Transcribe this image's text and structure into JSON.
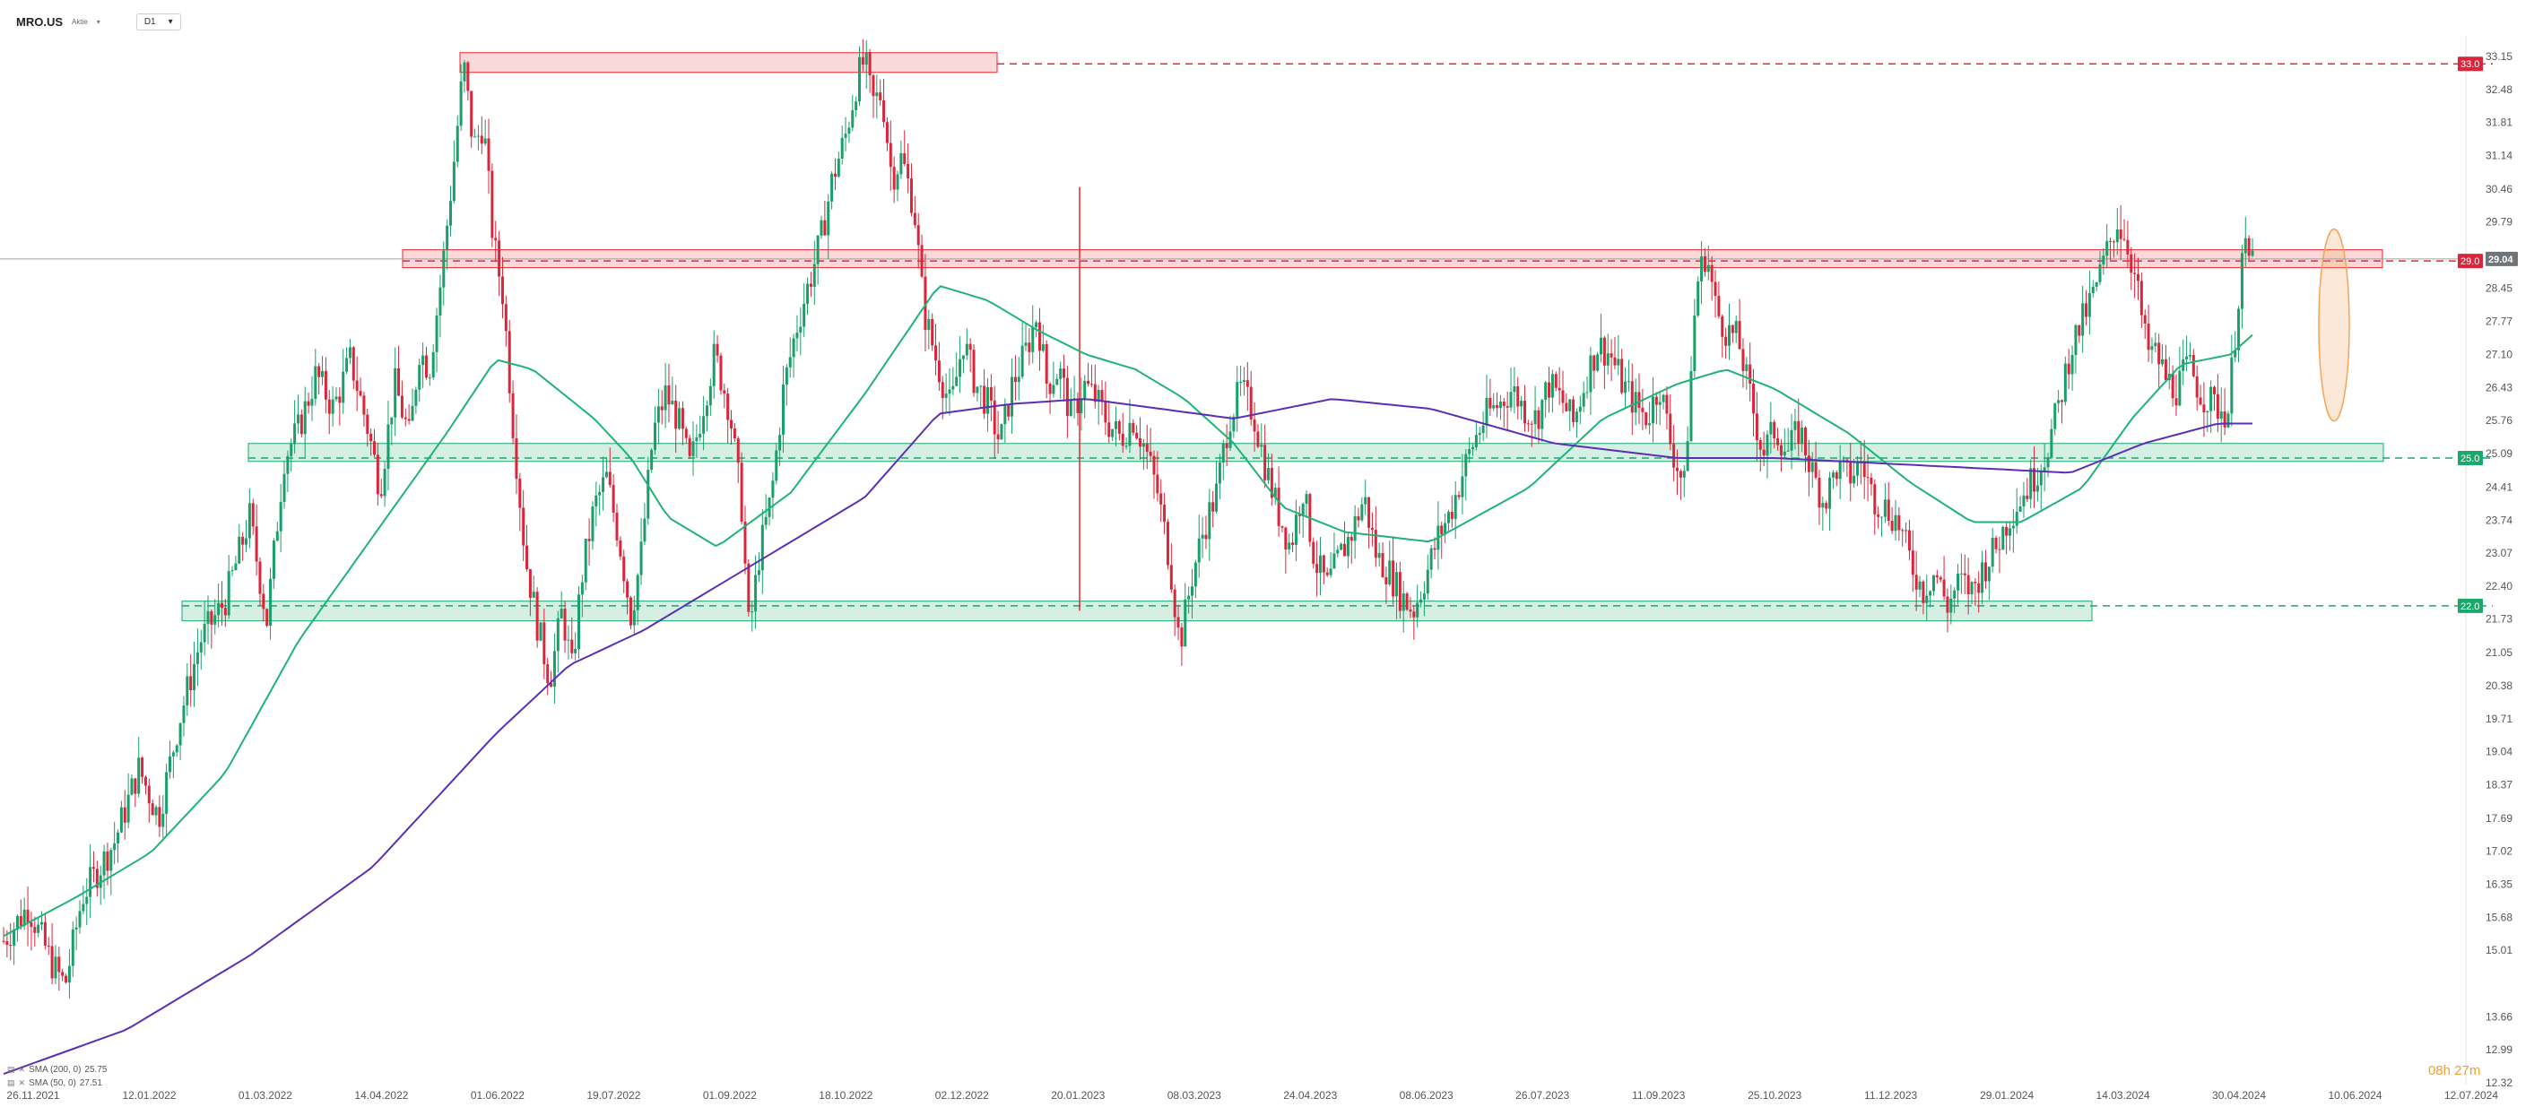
{
  "header": {
    "symbol": "MRO.US",
    "subtitle": "Aktie",
    "timeframe": "D1"
  },
  "indicators": [
    {
      "label": "SMA (200, 0)",
      "value": "25.75"
    },
    {
      "label": "SMA (50, 0)",
      "value": "27.51"
    }
  ],
  "countdown": "08h 27m",
  "colors": {
    "bull": "#1a9e6a",
    "bear": "#d9263a",
    "sma50": "#1fb27a",
    "sma200": "#5b2fb5",
    "resistance": "#e8262f",
    "support": "#1aa86c",
    "highlight": "#f5a35a"
  },
  "price_axis": {
    "ticks": [
      "33.15",
      "32.48",
      "31.81",
      "31.14",
      "30.46",
      "29.79",
      "28.45",
      "27.77",
      "27.10",
      "26.43",
      "25.76",
      "25.09",
      "24.41",
      "23.74",
      "23.07",
      "22.40",
      "21.73",
      "21.05",
      "20.38",
      "19.71",
      "19.04",
      "18.37",
      "17.69",
      "17.02",
      "16.35",
      "15.68",
      "15.01",
      "13.66",
      "12.99",
      "12.32"
    ],
    "markers": [
      {
        "text": "33.0",
        "color": "#d9263a"
      },
      {
        "text": "29.0",
        "color": "#d9263a"
      },
      {
        "text": "29.04",
        "color": "#6f7479"
      },
      {
        "text": "25.0",
        "color": "#1aa86c"
      },
      {
        "text": "22.0",
        "color": "#1aa86c"
      }
    ]
  },
  "chart_data": {
    "type": "candlestick",
    "title": "MRO.US",
    "timeframe": "D1",
    "ylim": [
      12.32,
      33.5
    ],
    "grid": false,
    "x_ticks": [
      "26.11.2021",
      "12.01.2022",
      "01.03.2022",
      "14.04.2022",
      "01.06.2022",
      "19.07.2022",
      "01.09.2022",
      "18.10.2022",
      "02.12.2022",
      "20.01.2023",
      "08.03.2023",
      "24.04.2023",
      "08.06.2023",
      "26.07.2023",
      "11.09.2023",
      "25.10.2023",
      "11.12.2023",
      "29.01.2024",
      "14.03.2024",
      "30.04.2024",
      "10.06.2024",
      "12.07.2024"
    ],
    "series": [
      {
        "name": "Price",
        "points": [
          [
            0.0,
            15.2
          ],
          [
            0.01,
            15.9
          ],
          [
            0.02,
            14.7
          ],
          [
            0.025,
            14.3
          ],
          [
            0.032,
            16.1
          ],
          [
            0.045,
            17.2
          ],
          [
            0.055,
            18.7
          ],
          [
            0.063,
            17.7
          ],
          [
            0.071,
            19.6
          ],
          [
            0.08,
            21.3
          ],
          [
            0.09,
            22.1
          ],
          [
            0.1,
            23.8
          ],
          [
            0.107,
            21.7
          ],
          [
            0.114,
            25.0
          ],
          [
            0.12,
            25.6
          ],
          [
            0.127,
            26.7
          ],
          [
            0.134,
            26.0
          ],
          [
            0.141,
            27.0
          ],
          [
            0.148,
            25.6
          ],
          [
            0.153,
            24.4
          ],
          [
            0.159,
            26.5
          ],
          [
            0.165,
            25.4
          ],
          [
            0.169,
            27.2
          ],
          [
            0.173,
            26.8
          ],
          [
            0.178,
            28.7
          ],
          [
            0.183,
            31.0
          ],
          [
            0.187,
            33.0
          ],
          [
            0.191,
            31.3
          ],
          [
            0.195,
            31.8
          ],
          [
            0.199,
            29.4
          ],
          [
            0.203,
            28.3
          ],
          [
            0.207,
            25.7
          ],
          [
            0.212,
            23.0
          ],
          [
            0.217,
            21.6
          ],
          [
            0.222,
            20.5
          ],
          [
            0.227,
            21.9
          ],
          [
            0.231,
            20.7
          ],
          [
            0.235,
            22.6
          ],
          [
            0.24,
            24.0
          ],
          [
            0.245,
            24.6
          ],
          [
            0.25,
            23.4
          ],
          [
            0.255,
            21.8
          ],
          [
            0.259,
            23.0
          ],
          [
            0.264,
            25.5
          ],
          [
            0.269,
            26.3
          ],
          [
            0.274,
            25.8
          ],
          [
            0.279,
            24.8
          ],
          [
            0.284,
            26.0
          ],
          [
            0.289,
            27.1
          ],
          [
            0.295,
            26.0
          ],
          [
            0.3,
            24.0
          ],
          [
            0.303,
            21.4
          ],
          [
            0.307,
            23.0
          ],
          [
            0.312,
            24.2
          ],
          [
            0.317,
            26.4
          ],
          [
            0.322,
            27.6
          ],
          [
            0.327,
            28.5
          ],
          [
            0.332,
            29.4
          ],
          [
            0.337,
            30.7
          ],
          [
            0.342,
            31.5
          ],
          [
            0.347,
            32.7
          ],
          [
            0.35,
            33.1
          ],
          [
            0.353,
            32.2
          ],
          [
            0.357,
            32.4
          ],
          [
            0.361,
            30.7
          ],
          [
            0.365,
            31.1
          ],
          [
            0.37,
            30.1
          ],
          [
            0.374,
            28.0
          ],
          [
            0.379,
            27.0
          ],
          [
            0.385,
            26.0
          ],
          [
            0.39,
            27.4
          ],
          [
            0.395,
            26.5
          ],
          [
            0.4,
            26.1
          ],
          [
            0.405,
            25.3
          ],
          [
            0.41,
            26.5
          ],
          [
            0.415,
            27.1
          ],
          [
            0.42,
            27.9
          ],
          [
            0.424,
            26.5
          ],
          [
            0.429,
            26.8
          ],
          [
            0.434,
            25.8
          ],
          [
            0.439,
            26.5
          ],
          [
            0.444,
            26.2
          ],
          [
            0.449,
            25.7
          ],
          [
            0.454,
            25.4
          ],
          [
            0.459,
            25.8
          ],
          [
            0.464,
            25.2
          ],
          [
            0.469,
            24.3
          ],
          [
            0.474,
            22.9
          ],
          [
            0.478,
            21.2
          ],
          [
            0.483,
            22.6
          ],
          [
            0.488,
            23.6
          ],
          [
            0.493,
            24.3
          ],
          [
            0.498,
            25.8
          ],
          [
            0.503,
            26.4
          ],
          [
            0.508,
            25.9
          ],
          [
            0.513,
            24.8
          ],
          [
            0.518,
            23.9
          ],
          [
            0.523,
            23.2
          ],
          [
            0.528,
            24.4
          ],
          [
            0.533,
            22.9
          ],
          [
            0.538,
            22.4
          ],
          [
            0.543,
            23.0
          ],
          [
            0.548,
            23.5
          ],
          [
            0.553,
            24.2
          ],
          [
            0.558,
            23.0
          ],
          [
            0.563,
            22.7
          ],
          [
            0.568,
            22.2
          ],
          [
            0.573,
            21.9
          ],
          [
            0.578,
            22.6
          ],
          [
            0.583,
            23.4
          ],
          [
            0.588,
            23.9
          ],
          [
            0.593,
            24.7
          ],
          [
            0.598,
            25.4
          ],
          [
            0.603,
            25.9
          ],
          [
            0.608,
            26.1
          ],
          [
            0.613,
            26.4
          ],
          [
            0.618,
            26.0
          ],
          [
            0.623,
            25.8
          ],
          [
            0.628,
            26.5
          ],
          [
            0.633,
            26.2
          ],
          [
            0.638,
            25.7
          ],
          [
            0.643,
            26.6
          ],
          [
            0.648,
            27.3
          ],
          [
            0.653,
            27.1
          ],
          [
            0.658,
            26.5
          ],
          [
            0.663,
            26.1
          ],
          [
            0.668,
            25.8
          ],
          [
            0.673,
            26.5
          ],
          [
            0.678,
            25.2
          ],
          [
            0.683,
            24.4
          ],
          [
            0.688,
            28.5
          ],
          [
            0.692,
            29.2
          ],
          [
            0.696,
            28.0
          ],
          [
            0.7,
            27.6
          ],
          [
            0.705,
            27.4
          ],
          [
            0.71,
            26.2
          ],
          [
            0.715,
            25.1
          ],
          [
            0.72,
            25.6
          ],
          [
            0.725,
            25.1
          ],
          [
            0.73,
            25.6
          ],
          [
            0.735,
            24.7
          ],
          [
            0.74,
            24.1
          ],
          [
            0.745,
            24.8
          ],
          [
            0.75,
            24.6
          ],
          [
            0.755,
            24.9
          ],
          [
            0.76,
            24.2
          ],
          [
            0.765,
            24.0
          ],
          [
            0.77,
            23.7
          ],
          [
            0.775,
            22.9
          ],
          [
            0.78,
            22.3
          ],
          [
            0.785,
            22.7
          ],
          [
            0.79,
            22.0
          ],
          [
            0.795,
            22.5
          ],
          [
            0.8,
            22.3
          ],
          [
            0.805,
            22.8
          ],
          [
            0.81,
            23.2
          ],
          [
            0.815,
            23.8
          ],
          [
            0.82,
            24.2
          ],
          [
            0.825,
            24.6
          ],
          [
            0.83,
            25.1
          ],
          [
            0.835,
            26.0
          ],
          [
            0.84,
            27.2
          ],
          [
            0.845,
            27.8
          ],
          [
            0.85,
            28.4
          ],
          [
            0.855,
            29.2
          ],
          [
            0.859,
            29.8
          ],
          [
            0.863,
            29.4
          ],
          [
            0.867,
            28.5
          ],
          [
            0.871,
            27.2
          ],
          [
            0.875,
            27.1
          ],
          [
            0.879,
            26.6
          ],
          [
            0.883,
            26.4
          ],
          [
            0.888,
            26.9
          ],
          [
            0.893,
            26.3
          ],
          [
            0.898,
            26.1
          ],
          [
            0.904,
            25.9
          ],
          [
            0.91,
            29.2
          ],
          [
            0.914,
            29.0
          ]
        ]
      },
      {
        "name": "SMA 50",
        "points": [
          [
            0.0,
            15.3
          ],
          [
            0.03,
            16.1
          ],
          [
            0.06,
            17.0
          ],
          [
            0.09,
            18.6
          ],
          [
            0.12,
            21.3
          ],
          [
            0.15,
            23.4
          ],
          [
            0.18,
            25.5
          ],
          [
            0.2,
            27.0
          ],
          [
            0.215,
            26.8
          ],
          [
            0.24,
            25.8
          ],
          [
            0.255,
            25.0
          ],
          [
            0.27,
            23.8
          ],
          [
            0.29,
            23.2
          ],
          [
            0.32,
            24.3
          ],
          [
            0.35,
            26.3
          ],
          [
            0.38,
            28.5
          ],
          [
            0.4,
            28.2
          ],
          [
            0.42,
            27.6
          ],
          [
            0.44,
            27.1
          ],
          [
            0.46,
            26.8
          ],
          [
            0.48,
            26.2
          ],
          [
            0.5,
            25.3
          ],
          [
            0.52,
            24.0
          ],
          [
            0.545,
            23.5
          ],
          [
            0.58,
            23.3
          ],
          [
            0.62,
            24.4
          ],
          [
            0.65,
            25.8
          ],
          [
            0.68,
            26.5
          ],
          [
            0.7,
            26.8
          ],
          [
            0.72,
            26.4
          ],
          [
            0.75,
            25.5
          ],
          [
            0.775,
            24.5
          ],
          [
            0.8,
            23.7
          ],
          [
            0.82,
            23.7
          ],
          [
            0.845,
            24.4
          ],
          [
            0.865,
            25.8
          ],
          [
            0.885,
            26.9
          ],
          [
            0.905,
            27.1
          ],
          [
            0.914,
            27.5
          ]
        ]
      },
      {
        "name": "SMA 200",
        "points": [
          [
            0.0,
            12.5
          ],
          [
            0.05,
            13.4
          ],
          [
            0.1,
            14.9
          ],
          [
            0.15,
            16.7
          ],
          [
            0.2,
            19.4
          ],
          [
            0.23,
            20.8
          ],
          [
            0.26,
            21.5
          ],
          [
            0.3,
            22.7
          ],
          [
            0.35,
            24.2
          ],
          [
            0.38,
            25.9
          ],
          [
            0.41,
            26.1
          ],
          [
            0.44,
            26.2
          ],
          [
            0.47,
            26.0
          ],
          [
            0.5,
            25.8
          ],
          [
            0.54,
            26.2
          ],
          [
            0.58,
            26.0
          ],
          [
            0.63,
            25.3
          ],
          [
            0.68,
            25.0
          ],
          [
            0.72,
            25.0
          ],
          [
            0.76,
            24.9
          ],
          [
            0.8,
            24.8
          ],
          [
            0.84,
            24.7
          ],
          [
            0.87,
            25.3
          ],
          [
            0.9,
            25.7
          ],
          [
            0.914,
            25.7
          ]
        ]
      }
    ]
  }
}
